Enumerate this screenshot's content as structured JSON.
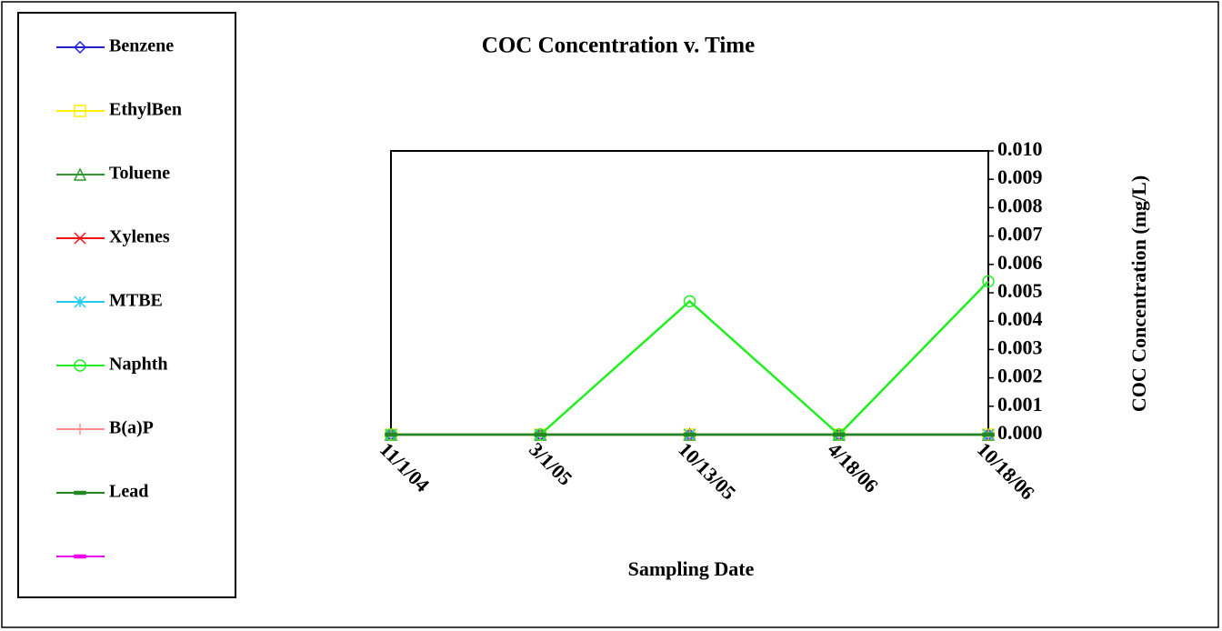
{
  "chart_data": {
    "type": "line",
    "title": "COC Concentration v. Time",
    "x_label": "Sampling Date",
    "y_label": "COC Concentration (mg/L)",
    "categories": [
      "11/1/04",
      "3/1/05",
      "10/13/05",
      "4/18/06",
      "10/18/06"
    ],
    "ylim": [
      0,
      0.01
    ],
    "yticks": [
      {
        "value": 0,
        "label": "0.000"
      },
      {
        "value": 0.001,
        "label": "0.001"
      },
      {
        "value": 0.002,
        "label": "0.002"
      },
      {
        "value": 0.003,
        "label": "0.003"
      },
      {
        "value": 0.004,
        "label": "0.004"
      },
      {
        "value": 0.005,
        "label": "0.005"
      },
      {
        "value": 0.006,
        "label": "0.006"
      },
      {
        "value": 0.007,
        "label": "0.007"
      },
      {
        "value": 0.008,
        "label": "0.008"
      },
      {
        "value": 0.009,
        "label": "0.009"
      },
      {
        "value": 0.01,
        "label": "0.010"
      }
    ],
    "y_axis_side": "right",
    "grid": false,
    "legend": "left",
    "series": [
      {
        "name": "Benzene",
        "color": "#2222cc",
        "marker": "diamond",
        "values": [
          0,
          0,
          0,
          0,
          0
        ]
      },
      {
        "name": "EthylBen",
        "color": "#ffee00",
        "marker": "square",
        "values": [
          0,
          0,
          0,
          0,
          0
        ]
      },
      {
        "name": "Toluene",
        "color": "#339933",
        "marker": "triangle",
        "values": [
          0,
          0,
          0,
          0,
          0
        ]
      },
      {
        "name": "Xylenes",
        "color": "#ee1111",
        "marker": "x",
        "values": [
          0,
          0,
          0,
          0,
          0
        ]
      },
      {
        "name": "MTBE",
        "color": "#22ccee",
        "marker": "asterisk",
        "values": [
          0,
          0,
          0,
          0,
          0
        ]
      },
      {
        "name": "Naphth",
        "color": "#22ee22",
        "marker": "circle",
        "values": [
          0,
          0,
          0.0047,
          0,
          0.0054
        ]
      },
      {
        "name": "B(a)P",
        "color": "#ff8888",
        "marker": "plus",
        "values": [
          0,
          0,
          0,
          0,
          0
        ]
      },
      {
        "name": "Lead",
        "color": "#228822",
        "marker": "dash",
        "values": [
          0,
          0,
          0,
          0,
          0
        ]
      },
      {
        "color": "#ee00ee",
        "marker": "dash",
        "values": [
          null,
          null,
          null,
          null,
          null
        ]
      }
    ]
  }
}
